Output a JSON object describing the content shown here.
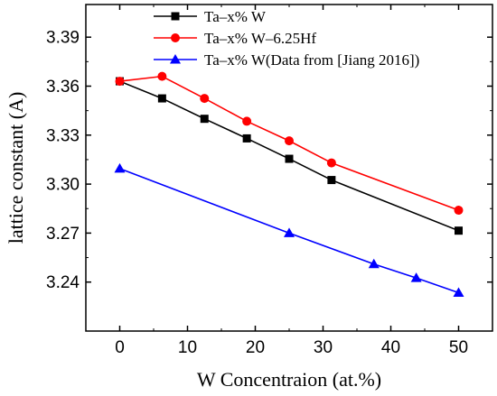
{
  "chart_data": {
    "type": "line",
    "xlabel": "W Concentraion (at.%)",
    "ylabel": "lattice constant (A)",
    "xlim": [
      -5,
      55
    ],
    "ylim": [
      3.21,
      3.41
    ],
    "x_ticks": [
      0,
      10,
      20,
      30,
      40,
      50
    ],
    "x_tick_labels": [
      "0",
      "10",
      "20",
      "30",
      "40",
      "50"
    ],
    "y_ticks": [
      3.24,
      3.27,
      3.3,
      3.33,
      3.36,
      3.39
    ],
    "y_tick_labels": [
      "3.24",
      "3.27",
      "3.30",
      "3.33",
      "3.36",
      "3.39"
    ],
    "grid": false,
    "legend_position": "top-right",
    "series": [
      {
        "name": "Ta–x% W",
        "color": "#000000",
        "marker": "square",
        "x": [
          0,
          6.25,
          12.5,
          18.75,
          25,
          31.25,
          50
        ],
        "y": [
          3.363,
          3.3525,
          3.34,
          3.328,
          3.3155,
          3.3025,
          3.2715
        ]
      },
      {
        "name": "Ta–x% W–6.25Hf",
        "color": "#ff0000",
        "marker": "circle",
        "x": [
          0,
          6.25,
          12.5,
          18.75,
          25,
          31.25,
          50
        ],
        "y": [
          3.363,
          3.366,
          3.3525,
          3.3385,
          3.3265,
          3.313,
          3.284
        ]
      },
      {
        "name": "Ta–x% W(Data from [Jiang 2016])",
        "color": "#0000ff",
        "marker": "triangle",
        "x": [
          0,
          25,
          37.5,
          43.75,
          50
        ],
        "y": [
          3.3095,
          3.27,
          3.251,
          3.2425,
          3.2335
        ]
      }
    ]
  }
}
